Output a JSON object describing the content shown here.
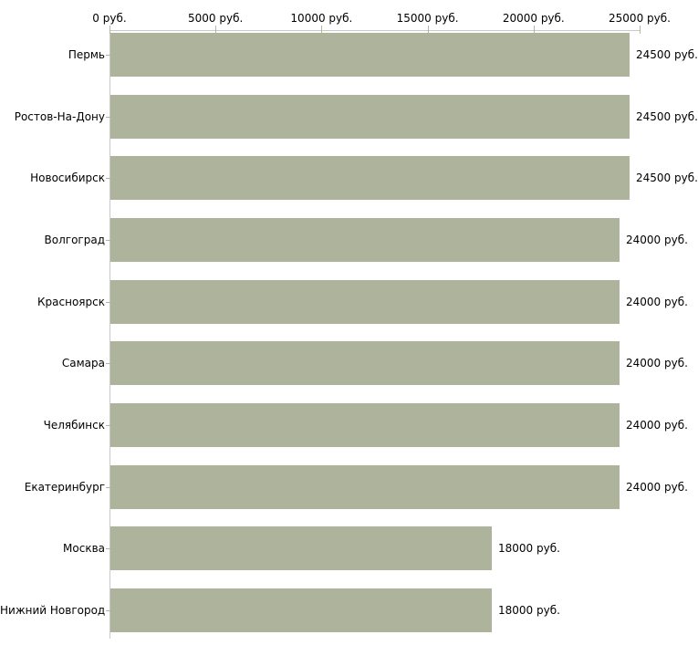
{
  "chart_data": {
    "type": "bar",
    "orientation": "horizontal",
    "title": "",
    "xlabel": "",
    "ylabel": "",
    "grid": false,
    "legend": "none",
    "categories": [
      "Пермь",
      "Ростов-На-Дону",
      "Новосибирск",
      "Волгоград",
      "Красноярск",
      "Самара",
      "Челябинск",
      "Екатеринбург",
      "Москва",
      "Нижний Новгород"
    ],
    "values": [
      24500,
      24500,
      24500,
      24000,
      24000,
      24000,
      24000,
      24000,
      18000,
      18000
    ],
    "value_labels": [
      "24500 руб.",
      "24500 руб.",
      "24500 руб.",
      "24000 руб.",
      "24000 руб.",
      "24000 руб.",
      "24000 руб.",
      "24000 руб.",
      "18000 руб.",
      "18000 руб."
    ],
    "x_axis": {
      "position": "top",
      "min": 0,
      "max": 25000,
      "ticks": [
        0,
        5000,
        10000,
        15000,
        20000,
        25000
      ],
      "tick_labels": [
        "0 руб.",
        "5000 руб.",
        "10000 руб.",
        "15000 руб.",
        "20000 руб.",
        "25000 руб."
      ]
    },
    "colors": {
      "bar": "#aeb49b",
      "axis_line": "#c9c9c9",
      "tick_mark": "#b8b896",
      "category_tick": "#b3b3a0",
      "text": "#000000",
      "background": "#ffffff"
    }
  }
}
